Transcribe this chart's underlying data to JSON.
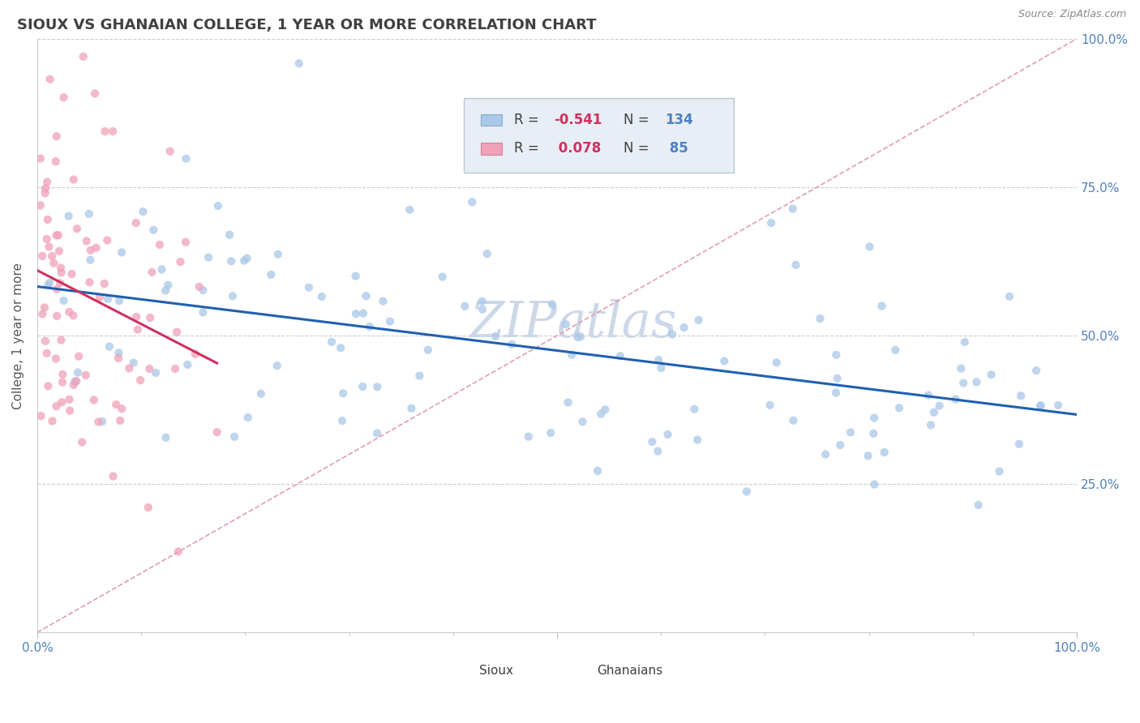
{
  "title": "SIOUX VS GHANAIAN COLLEGE, 1 YEAR OR MORE CORRELATION CHART",
  "source_text": "Source: ZipAtlas.com",
  "ylabel": "College, 1 year or more",
  "sioux_color": "#aac8e8",
  "ghanaian_color": "#f0a0b8",
  "trendline_sioux_color": "#2060b0",
  "trendline_ghanaian_color": "#d03060",
  "trendline_dashed_color": "#e0a0b0",
  "background_color": "#ffffff",
  "grid_color": "#cccccc",
  "title_color": "#404040",
  "axis_tick_color": "#5080c0",
  "watermark_color": "#ccd8e8",
  "legend_box_color": "#e8eef5",
  "legend_r_color": "#d03060",
  "legend_n_color": "#5080c0",
  "r_sioux": -0.541,
  "n_sioux": 134,
  "r_ghanaian": 0.078,
  "n_ghanaian": 85,
  "seed_sioux": 42,
  "seed_ghanaian": 99
}
